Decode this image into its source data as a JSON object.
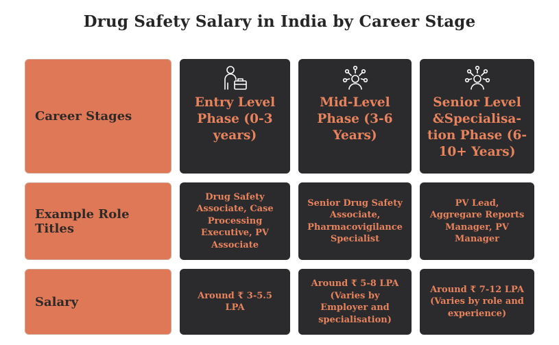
{
  "title": "Drug Safety Salary in India by Career Stage",
  "colors": {
    "accent": "#df7857",
    "card": "#2b2a2d",
    "text_accent": "#e7835d"
  },
  "rows": [
    {
      "label": "Career Stages",
      "cells": [
        {
          "text": "Entry Level Phase (0-3 years)",
          "icon": "person-briefcase-icon"
        },
        {
          "text": "Mid-Level Phase (3-6 Years)",
          "icon": "person-network-icon"
        },
        {
          "text": "Senior Level &Specialisa-tion Phase (6-10+ Years)",
          "icon": "person-network-icon"
        }
      ]
    },
    {
      "label": "Example Role Titles",
      "cells": [
        {
          "text": "Drug Safety Associate, Case Processing Executive, PV Associate"
        },
        {
          "text": "Senior Drug Safety Associate, Pharmacovigilance Specialist"
        },
        {
          "text": "PV Lead, Aggregare Reports Manager, PV Manager"
        }
      ]
    },
    {
      "label": "Salary",
      "cells": [
        {
          "text": "Around ₹ 3-5.5 LPA"
        },
        {
          "text": "Around ₹ 5-8 LPA (Varies by Employer and specialisation)"
        },
        {
          "text": "Around ₹ 7-12 LPA (Varies by role and experience)"
        }
      ]
    }
  ]
}
